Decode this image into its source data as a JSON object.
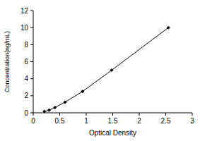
{
  "chart_data": {
    "type": "line",
    "x_label": "Optical Density",
    "y_label": "Concentration(ng/mL)",
    "x": [
      0.21,
      0.3,
      0.41,
      0.6,
      0.93,
      1.48,
      2.55
    ],
    "values": [
      0.156,
      0.312,
      0.625,
      1.25,
      2.5,
      5,
      10
    ],
    "color": "#000000",
    "marker": "diamond",
    "line_style": "solid",
    "xlim": [
      0,
      3
    ],
    "xticks": [
      0,
      0.5,
      1,
      1.5,
      2,
      2.5,
      3
    ],
    "ylim": [
      0,
      12
    ],
    "yticks": [
      0,
      2,
      4,
      6,
      8,
      10,
      12
    ],
    "grid": false
  }
}
